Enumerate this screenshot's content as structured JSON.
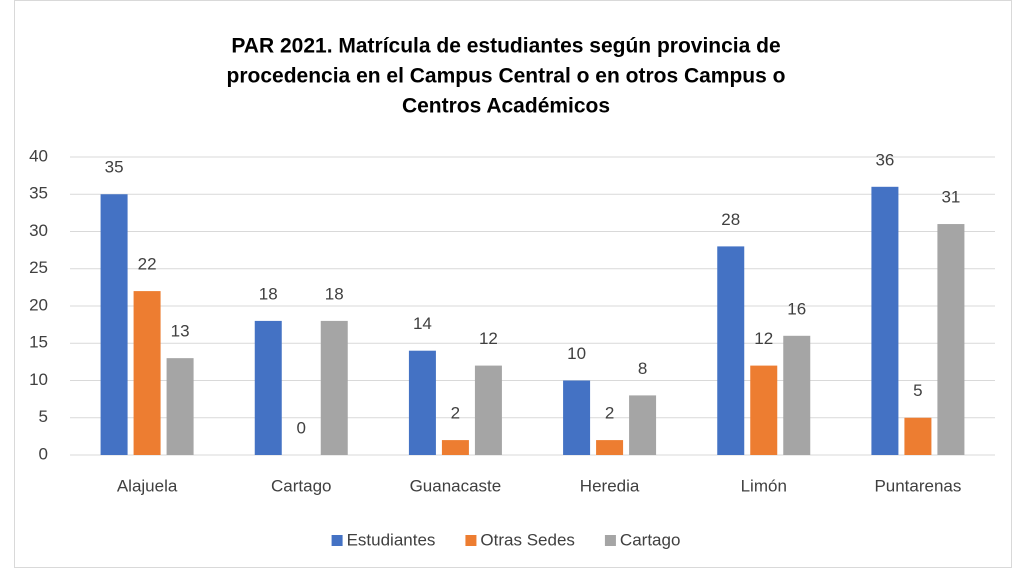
{
  "chart_data": {
    "type": "bar",
    "title": [
      "PAR 2021. Matrícula de estudiantes según provincia de",
      "procedencia en el Campus Central o en otros Campus o",
      "Centros Académicos"
    ],
    "categories": [
      "Alajuela",
      "Cartago",
      "Guanacaste",
      "Heredia",
      "Limón",
      "Puntarenas"
    ],
    "series": [
      {
        "name": "Estudiantes",
        "color": "#4472c4",
        "values": [
          35,
          18,
          14,
          10,
          28,
          36
        ]
      },
      {
        "name": "Otras Sedes",
        "color": "#ed7d31",
        "values": [
          22,
          0,
          2,
          2,
          12,
          5
        ]
      },
      {
        "name": "Cartago",
        "color": "#a5a5a5",
        "values": [
          13,
          18,
          12,
          8,
          16,
          31
        ]
      }
    ],
    "ylim": [
      0,
      40
    ],
    "yticks": [
      0,
      5,
      10,
      15,
      20,
      25,
      30,
      35,
      40
    ],
    "grid": true,
    "legend": "bottom"
  }
}
